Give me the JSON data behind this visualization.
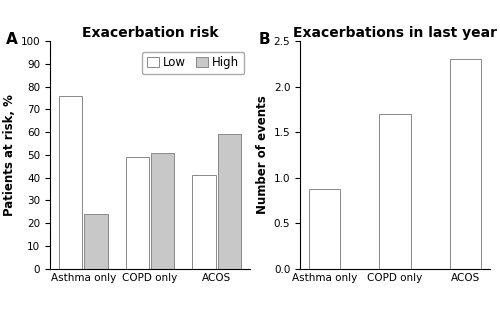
{
  "panel_A": {
    "title": "Exacerbation risk",
    "ylabel": "Patients at risk, %",
    "categories": [
      "Asthma only",
      "COPD only",
      "ACOS"
    ],
    "low_values": [
      76,
      49,
      41
    ],
    "high_values": [
      24,
      51,
      59
    ],
    "low_color": "#ffffff",
    "high_color": "#c8c8c8",
    "bar_edge_color": "#888888",
    "ylim": [
      0,
      100
    ],
    "yticks": [
      0,
      10,
      20,
      30,
      40,
      50,
      60,
      70,
      80,
      90,
      100
    ],
    "legend_labels": [
      "Low",
      "High"
    ]
  },
  "panel_B": {
    "title": "Exacerbations in last year",
    "ylabel": "Number of events",
    "categories": [
      "Asthma only",
      "COPD only",
      "ACOS"
    ],
    "values": [
      0.88,
      1.7,
      2.3
    ],
    "bar_color": "#ffffff",
    "bar_edge_color": "#888888",
    "ylim": [
      0,
      2.5
    ],
    "yticks": [
      0,
      0.5,
      1.0,
      1.5,
      2.0,
      2.5
    ]
  },
  "panel_label_fontsize": 11,
  "title_fontsize": 10,
  "axis_label_fontsize": 8.5,
  "tick_fontsize": 7.5,
  "legend_fontsize": 8.5,
  "background_color": "#ffffff"
}
